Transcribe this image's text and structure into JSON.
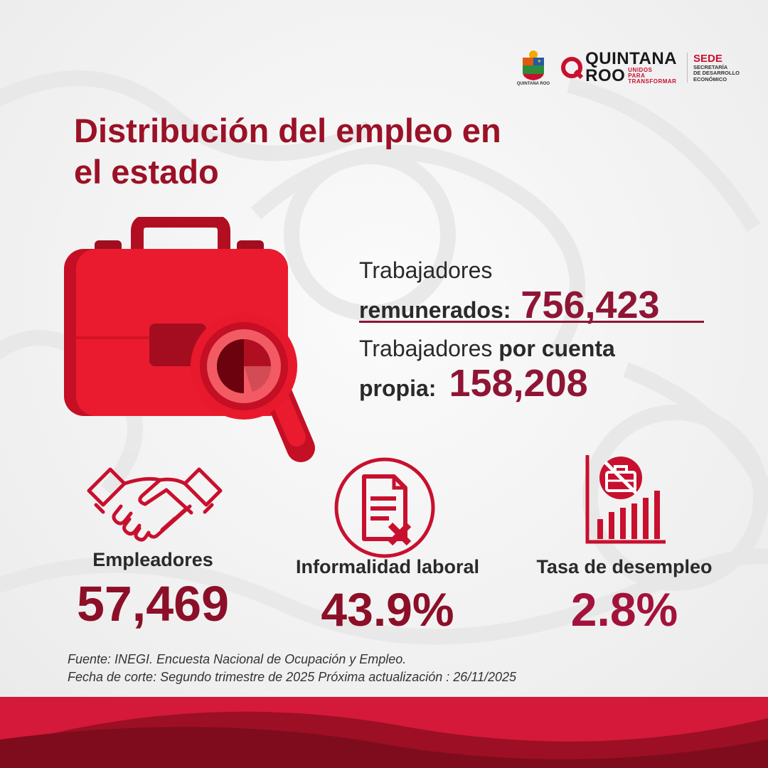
{
  "header": {
    "logo_state_caption": "QUINTANA ROO",
    "logo_qroo_line1": "QUINTANA",
    "logo_qroo_line2": "ROO",
    "logo_qroo_tag": "UNIDOS PARA TRANSFORMAR",
    "logo_sede_title": "SEDE",
    "logo_sede_line1": "SECRETARÍA",
    "logo_sede_line2": "DE DESARROLLO",
    "logo_sede_line3": "ECONÓMICO"
  },
  "title_line1": "Distribución del empleo en",
  "title_line2": "el estado",
  "stats": {
    "remunerados_label_1": "Trabajadores",
    "remunerados_label_2": "remunerados:",
    "remunerados_value": "756,423",
    "cuenta_propia_label_1": "Trabajadores",
    "cuenta_propia_label_1b": "por cuenta",
    "cuenta_propia_label_2": "propia:",
    "cuenta_propia_value": "158,208"
  },
  "kpis": [
    {
      "label": "Empleadores",
      "value": "57,469",
      "icon": "handshake-icon"
    },
    {
      "label": "Informalidad laboral",
      "value": "43.9%",
      "icon": "document-x-icon"
    },
    {
      "label": "Tasa de desempleo",
      "value": "2.8%",
      "icon": "bar-chart-briefcase-icon"
    }
  ],
  "footer": {
    "line1": "Fuente: INEGI. Encuesta Nacional de Ocupación y Empleo.",
    "line2": "Fecha de corte: Segundo trimestre de 2025  Próxima actualización : 26/11/2025"
  },
  "colors": {
    "brand_red": "#c8102e",
    "dark_red": "#8f1535",
    "accent_red": "#e8192c"
  }
}
